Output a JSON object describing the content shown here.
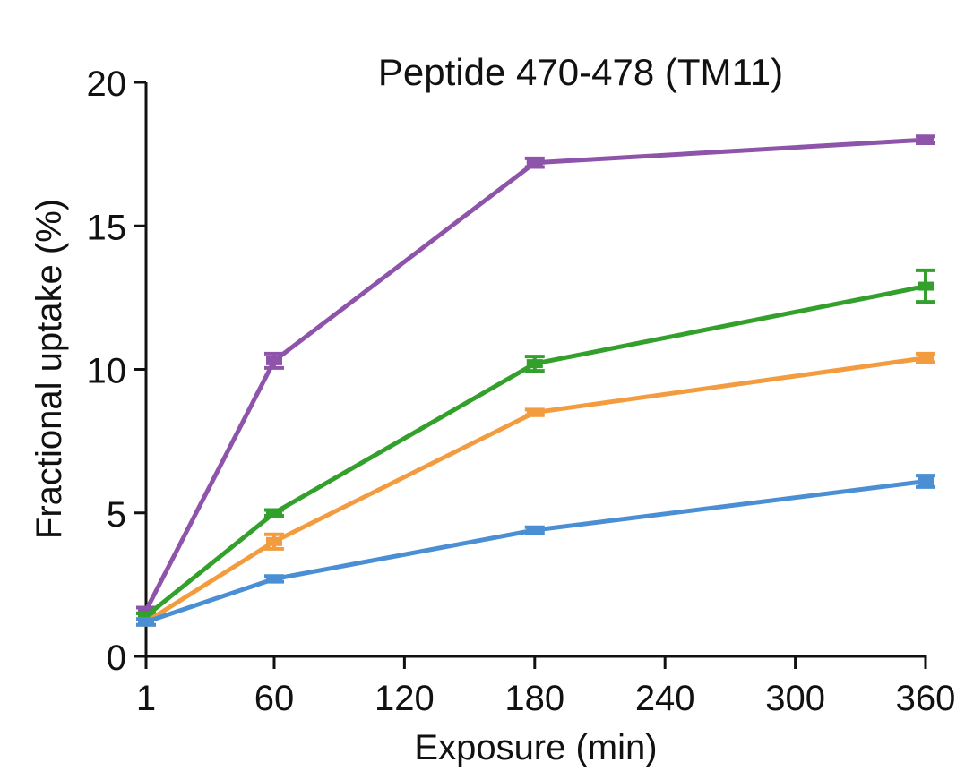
{
  "chart_data": {
    "type": "line",
    "title": "Peptide 470-478 (TM11)",
    "xlabel": "Exposure (min)",
    "ylabel": "Fractional uptake (%)",
    "x_ticks": [
      1,
      60,
      120,
      180,
      240,
      300,
      360
    ],
    "x_tick_labels": [
      "1",
      "60",
      "120",
      "180",
      "240",
      "300",
      "360"
    ],
    "y_ticks": [
      0,
      5,
      10,
      15,
      20
    ],
    "y_tick_labels": [
      "0",
      "5",
      "10",
      "15",
      "20"
    ],
    "xlim": [
      1,
      360
    ],
    "ylim": [
      0,
      20
    ],
    "grid": false,
    "x": [
      1,
      60,
      180,
      360
    ],
    "series": [
      {
        "color": "#8e54a9",
        "values": [
          1.6,
          10.3,
          17.2,
          18.0
        ],
        "errors": [
          0.1,
          0.25,
          0.15,
          0.12
        ]
      },
      {
        "color": "#33a02c",
        "values": [
          1.4,
          5.0,
          10.2,
          12.9
        ],
        "errors": [
          0.1,
          0.1,
          0.25,
          0.55
        ]
      },
      {
        "color": "#f39c3f",
        "values": [
          1.2,
          4.0,
          8.5,
          10.4
        ],
        "errors": [
          0.1,
          0.25,
          0.1,
          0.15
        ]
      },
      {
        "color": "#4a8fd4",
        "values": [
          1.2,
          2.7,
          4.4,
          6.1
        ],
        "errors": [
          0.1,
          0.1,
          0.1,
          0.2
        ]
      }
    ]
  }
}
